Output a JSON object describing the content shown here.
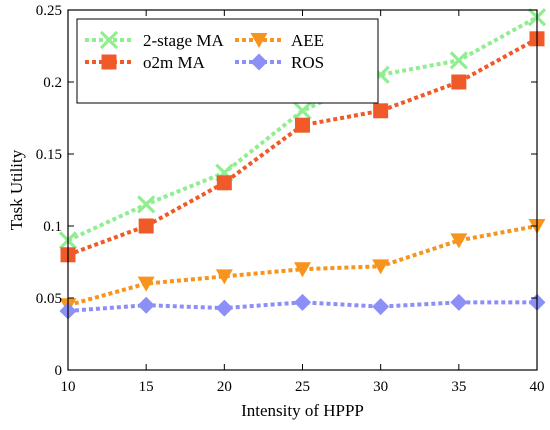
{
  "chart_data": {
    "type": "line",
    "title": "",
    "xlabel": "Intensity of HPPP",
    "ylabel": "Task Utility",
    "x": [
      10,
      15,
      20,
      25,
      30,
      35,
      40
    ],
    "xlim": [
      10,
      40
    ],
    "ylim": [
      0,
      0.25
    ],
    "xticks": [
      "10",
      "15",
      "20",
      "25",
      "30",
      "35",
      "40"
    ],
    "yticks": [
      "0",
      "0.05",
      "0.1",
      "0.15",
      "0.2",
      "0.25"
    ],
    "grid": false,
    "legend_position": "top-left",
    "series": [
      {
        "name": "2-stage MA",
        "values": [
          0.09,
          0.115,
          0.137,
          0.18,
          0.205,
          0.215,
          0.245
        ],
        "color": "#90ee90",
        "marker": "x"
      },
      {
        "name": "o2m MA",
        "values": [
          0.08,
          0.1,
          0.13,
          0.17,
          0.18,
          0.2,
          0.23
        ],
        "color": "#f05a28",
        "marker": "square"
      },
      {
        "name": "AEE",
        "values": [
          0.045,
          0.06,
          0.065,
          0.07,
          0.072,
          0.09,
          0.1
        ],
        "color": "#f7941d",
        "marker": "triangle-down"
      },
      {
        "name": "ROS",
        "values": [
          0.041,
          0.045,
          0.043,
          0.047,
          0.044,
          0.047,
          0.047
        ],
        "color": "#8c8ff5",
        "marker": "diamond"
      }
    ]
  }
}
